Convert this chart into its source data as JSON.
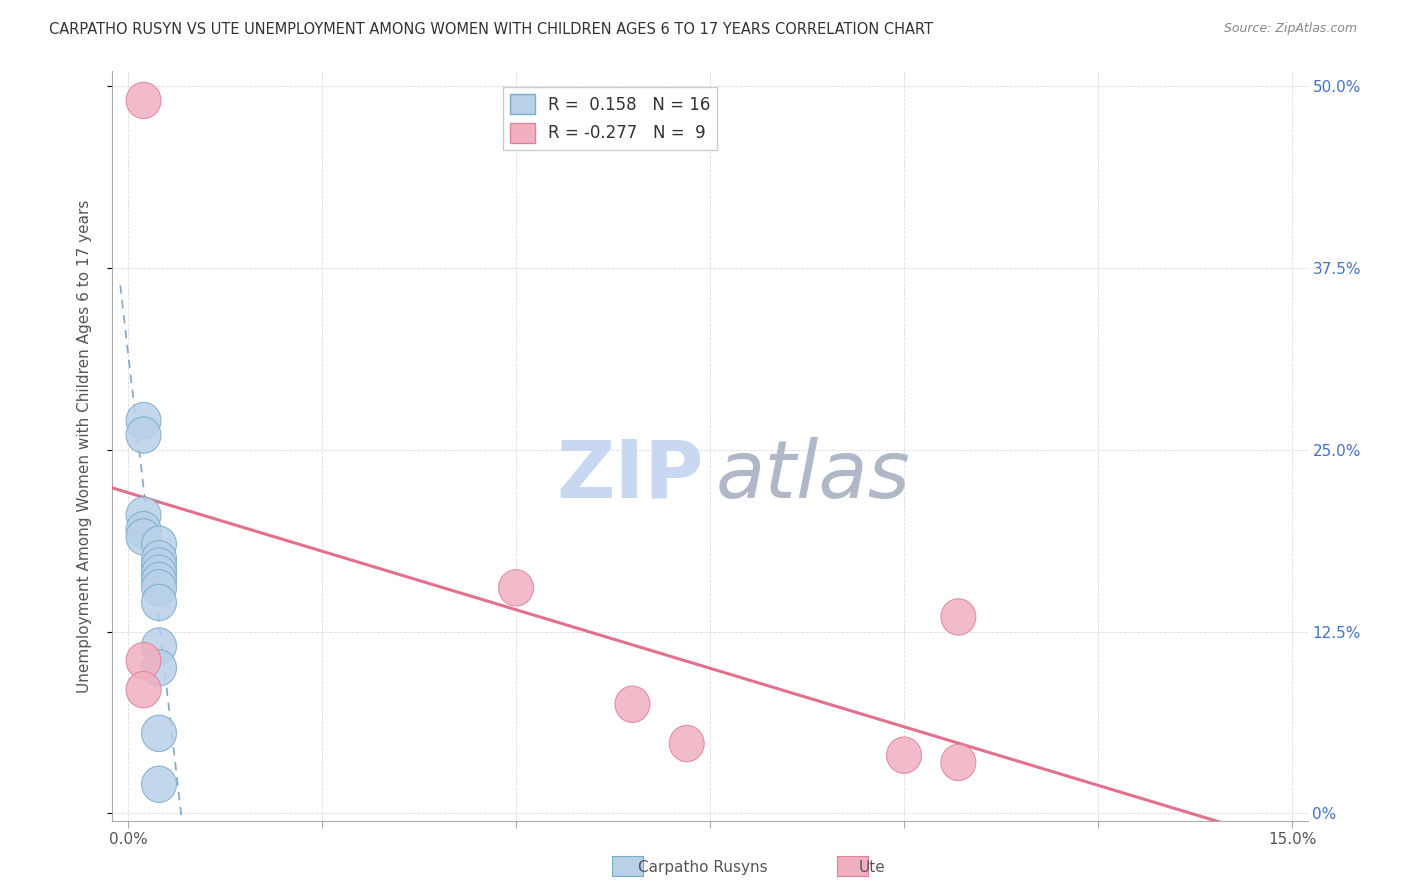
{
  "title": "CARPATHO RUSYN VS UTE UNEMPLOYMENT AMONG WOMEN WITH CHILDREN AGES 6 TO 17 YEARS CORRELATION CHART",
  "source": "Source: ZipAtlas.com",
  "ylabel": "Unemployment Among Women with Children Ages 6 to 17 years",
  "xlim": [
    0.0,
    0.15
  ],
  "ylim": [
    0.0,
    0.5
  ],
  "xtick_positions": [
    0.0,
    0.025,
    0.05,
    0.075,
    0.1,
    0.125,
    0.15
  ],
  "xtick_labels": [
    "0.0%",
    "",
    "",
    "",
    "",
    "",
    "15.0%"
  ],
  "ytick_positions": [
    0.0,
    0.125,
    0.25,
    0.375,
    0.5
  ],
  "ytick_labels_right": [
    "0%",
    "12.5%",
    "25.0%",
    "37.5%",
    "50.0%"
  ],
  "carpatho_R": "0.158",
  "carpatho_N": "16",
  "ute_R": "-0.277",
  "ute_N": "9",
  "carpatho_color": "#b8d0e8",
  "ute_color": "#f0b0c0",
  "carpatho_edge_color": "#7aadcc",
  "ute_edge_color": "#e080a0",
  "carpatho_line_color": "#5588bb",
  "ute_line_color": "#e06080",
  "grid_color": "#cccccc",
  "title_color": "#333333",
  "source_color": "#888888",
  "right_tick_color": "#4472c4",
  "ylabel_color": "#555555",
  "carpatho_x": [
    0.002,
    0.002,
    0.002,
    0.002,
    0.002,
    0.004,
    0.004,
    0.004,
    0.004,
    0.004,
    0.004,
    0.004,
    0.004,
    0.004,
    0.004,
    0.004
  ],
  "carpatho_y": [
    0.27,
    0.26,
    0.205,
    0.195,
    0.19,
    0.185,
    0.175,
    0.17,
    0.165,
    0.16,
    0.155,
    0.145,
    0.115,
    0.1,
    0.055,
    0.02
  ],
  "ute_x": [
    0.002,
    0.002,
    0.002,
    0.05,
    0.065,
    0.072,
    0.1,
    0.107,
    0.107
  ],
  "ute_y": [
    0.49,
    0.105,
    0.085,
    0.155,
    0.075,
    0.048,
    0.04,
    0.035,
    0.135
  ],
  "legend_label_carpatho": "Carpatho Rusyns",
  "legend_label_ute": "Ute",
  "watermark_zip_color": "#c8d8f0",
  "watermark_atlas_color": "#b0b8c8"
}
